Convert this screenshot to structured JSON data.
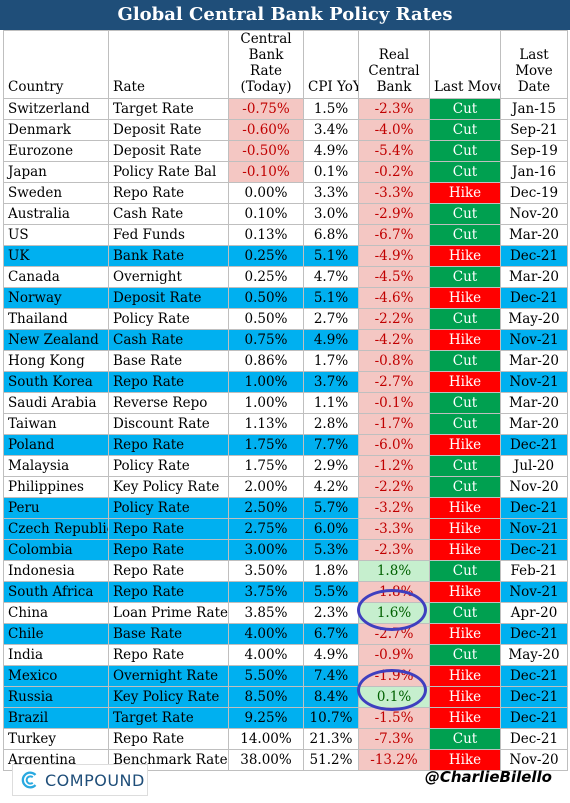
{
  "title": "Global Central Bank Policy Rates",
  "headers": {
    "country": "Country",
    "rate": "Rate",
    "cb_rate": "Central Bank Rate (Today)",
    "cpi": "CPI YoY",
    "real": "Real Central Bank",
    "last_move": "Last Move",
    "last_move_date": "Last Move Date"
  },
  "rows": [
    {
      "country": "Switzerland",
      "rate": "Target Rate",
      "cb": "-0.75%",
      "cpi": "1.5%",
      "real": "-2.3%",
      "move": "Cut",
      "date": "Jan-15",
      "hl": false
    },
    {
      "country": "Denmark",
      "rate": "Deposit Rate",
      "cb": "-0.60%",
      "cpi": "3.4%",
      "real": "-4.0%",
      "move": "Cut",
      "date": "Sep-21",
      "hl": false
    },
    {
      "country": "Eurozone",
      "rate": "Deposit Rate",
      "cb": "-0.50%",
      "cpi": "4.9%",
      "real": "-5.4%",
      "move": "Cut",
      "date": "Sep-19",
      "hl": false
    },
    {
      "country": "Japan",
      "rate": "Policy Rate Bal",
      "cb": "-0.10%",
      "cpi": "0.1%",
      "real": "-0.2%",
      "move": "Cut",
      "date": "Jan-16",
      "hl": false
    },
    {
      "country": "Sweden",
      "rate": "Repo Rate",
      "cb": "0.00%",
      "cpi": "3.3%",
      "real": "-3.3%",
      "move": "Hike",
      "date": "Dec-19",
      "hl": false
    },
    {
      "country": "Australia",
      "rate": "Cash Rate",
      "cb": "0.10%",
      "cpi": "3.0%",
      "real": "-2.9%",
      "move": "Cut",
      "date": "Nov-20",
      "hl": false
    },
    {
      "country": "US",
      "rate": "Fed Funds",
      "cb": "0.13%",
      "cpi": "6.8%",
      "real": "-6.7%",
      "move": "Cut",
      "date": "Mar-20",
      "hl": false
    },
    {
      "country": "UK",
      "rate": "Bank Rate",
      "cb": "0.25%",
      "cpi": "5.1%",
      "real": "-4.9%",
      "move": "Hike",
      "date": "Dec-21",
      "hl": true
    },
    {
      "country": "Canada",
      "rate": "Overnight",
      "cb": "0.25%",
      "cpi": "4.7%",
      "real": "-4.5%",
      "move": "Cut",
      "date": "Mar-20",
      "hl": false
    },
    {
      "country": "Norway",
      "rate": "Deposit Rate",
      "cb": "0.50%",
      "cpi": "5.1%",
      "real": "-4.6%",
      "move": "Hike",
      "date": "Dec-21",
      "hl": true
    },
    {
      "country": "Thailand",
      "rate": "Policy Rate",
      "cb": "0.50%",
      "cpi": "2.7%",
      "real": "-2.2%",
      "move": "Cut",
      "date": "May-20",
      "hl": false
    },
    {
      "country": "New Zealand",
      "rate": "Cash Rate",
      "cb": "0.75%",
      "cpi": "4.9%",
      "real": "-4.2%",
      "move": "Hike",
      "date": "Nov-21",
      "hl": true
    },
    {
      "country": "Hong Kong",
      "rate": "Base Rate",
      "cb": "0.86%",
      "cpi": "1.7%",
      "real": "-0.8%",
      "move": "Cut",
      "date": "Mar-20",
      "hl": false
    },
    {
      "country": "South Korea",
      "rate": "Repo Rate",
      "cb": "1.00%",
      "cpi": "3.7%",
      "real": "-2.7%",
      "move": "Hike",
      "date": "Nov-21",
      "hl": true
    },
    {
      "country": "Saudi Arabia",
      "rate": "Reverse Repo",
      "cb": "1.00%",
      "cpi": "1.1%",
      "real": "-0.1%",
      "move": "Cut",
      "date": "Mar-20",
      "hl": false
    },
    {
      "country": "Taiwan",
      "rate": "Discount Rate",
      "cb": "1.13%",
      "cpi": "2.8%",
      "real": "-1.7%",
      "move": "Cut",
      "date": "Mar-20",
      "hl": false
    },
    {
      "country": "Poland",
      "rate": "Repo Rate",
      "cb": "1.75%",
      "cpi": "7.7%",
      "real": "-6.0%",
      "move": "Hike",
      "date": "Dec-21",
      "hl": true
    },
    {
      "country": "Malaysia",
      "rate": "Policy Rate",
      "cb": "1.75%",
      "cpi": "2.9%",
      "real": "-1.2%",
      "move": "Cut",
      "date": "Jul-20",
      "hl": false
    },
    {
      "country": "Philippines",
      "rate": "Key Policy Rate",
      "cb": "2.00%",
      "cpi": "4.2%",
      "real": "-2.2%",
      "move": "Cut",
      "date": "Nov-20",
      "hl": false
    },
    {
      "country": "Peru",
      "rate": "Policy Rate",
      "cb": "2.50%",
      "cpi": "5.7%",
      "real": "-3.2%",
      "move": "Hike",
      "date": "Dec-21",
      "hl": true
    },
    {
      "country": "Czech Republic",
      "rate": "Repo Rate",
      "cb": "2.75%",
      "cpi": "6.0%",
      "real": "-3.3%",
      "move": "Hike",
      "date": "Nov-21",
      "hl": true
    },
    {
      "country": "Colombia",
      "rate": "Repo Rate",
      "cb": "3.00%",
      "cpi": "5.3%",
      "real": "-2.3%",
      "move": "Hike",
      "date": "Dec-21",
      "hl": true
    },
    {
      "country": "Indonesia",
      "rate": "Repo Rate",
      "cb": "3.50%",
      "cpi": "1.8%",
      "real": "1.8%",
      "move": "Cut",
      "date": "Feb-21",
      "hl": false
    },
    {
      "country": "South Africa",
      "rate": "Repo Rate",
      "cb": "3.75%",
      "cpi": "5.5%",
      "real": "-1.8%",
      "move": "Hike",
      "date": "Nov-21",
      "hl": true
    },
    {
      "country": "China",
      "rate": "Loan Prime Rate",
      "cb": "3.85%",
      "cpi": "2.3%",
      "real": "1.6%",
      "move": "Cut",
      "date": "Apr-20",
      "hl": false
    },
    {
      "country": "Chile",
      "rate": "Base Rate",
      "cb": "4.00%",
      "cpi": "6.7%",
      "real": "-2.7%",
      "move": "Hike",
      "date": "Dec-21",
      "hl": true
    },
    {
      "country": "India",
      "rate": "Repo Rate",
      "cb": "4.00%",
      "cpi": "4.9%",
      "real": "-0.9%",
      "move": "Cut",
      "date": "May-20",
      "hl": false
    },
    {
      "country": "Mexico",
      "rate": "Overnight Rate",
      "cb": "5.50%",
      "cpi": "7.4%",
      "real": "-1.9%",
      "move": "Hike",
      "date": "Dec-21",
      "hl": true
    },
    {
      "country": "Russia",
      "rate": "Key Policy Rate",
      "cb": "8.50%",
      "cpi": "8.4%",
      "real": "0.1%",
      "move": "Hike",
      "date": "Dec-21",
      "hl": true
    },
    {
      "country": "Brazil",
      "rate": "Target Rate",
      "cb": "9.25%",
      "cpi": "10.7%",
      "real": "-1.5%",
      "move": "Hike",
      "date": "Dec-21",
      "hl": true
    },
    {
      "country": "Turkey",
      "rate": "Repo Rate",
      "cb": "14.00%",
      "cpi": "21.3%",
      "real": "-7.3%",
      "move": "Cut",
      "date": "Dec-21",
      "hl": false
    },
    {
      "country": "Argentina",
      "rate": "Benchmark Rate",
      "cb": "38.00%",
      "cpi": "51.2%",
      "real": "-13.2%",
      "move": "Hike",
      "date": "Nov-20",
      "hl": false
    }
  ],
  "colors": {
    "title_bg": "#1F4E79",
    "highlight_row": "#00B0F0",
    "cut": "#00A050",
    "hike": "#FF0000",
    "negative_bg": "#F4C7C3",
    "positive_bg": "#C6EFCE",
    "circle": "#3F3FBF"
  },
  "footer": {
    "logo_text": "COMPOUND",
    "logo_icon": "compound-c-icon",
    "handle": "@CharlieBilello"
  }
}
